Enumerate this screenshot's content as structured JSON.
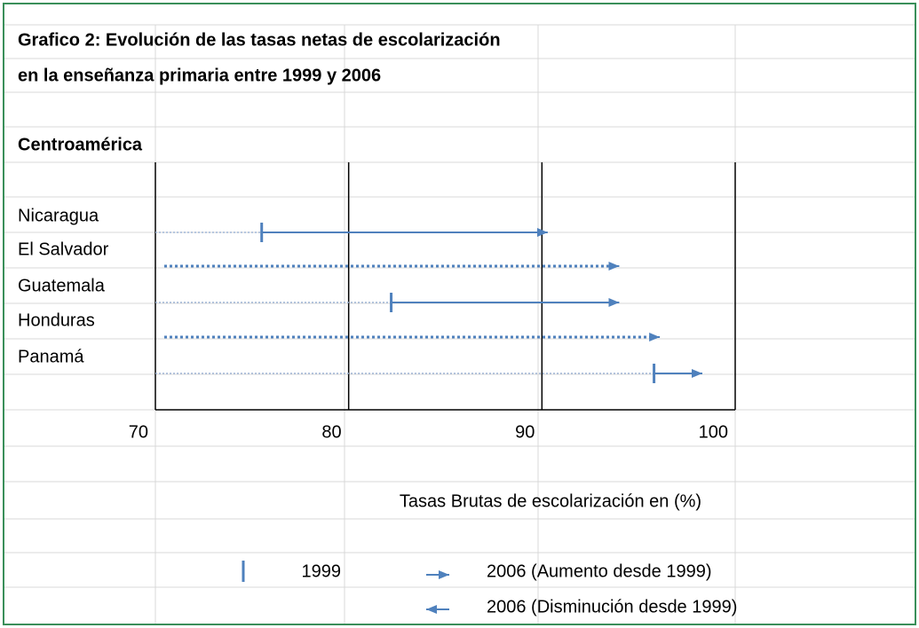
{
  "chart_data": {
    "type": "arrow-range",
    "title": "Grafico 2: Evolución de las tasas netas de escolarización",
    "subtitle": "en la enseñanza primaria entre 1999 y 2006",
    "region": "Centroamérica",
    "x_label": "Tasas Brutas de escolarización en (%)",
    "categories": [
      "Nicaragua",
      "El Salvador",
      "Guatemala",
      "Honduras",
      "Panamá"
    ],
    "series": [
      {
        "name": "1999",
        "color": "#4f81bd",
        "values": [
          75.5,
          null,
          82.2,
          null,
          95.8
        ]
      },
      {
        "name": "2006 (Aumento desde 1999)",
        "color": "#4f81bd",
        "values": [
          90.3,
          94,
          94,
          96.1,
          98.3
        ]
      }
    ],
    "decrease_label": "2006 (Disminución desde 1999)",
    "xlim": [
      70,
      100
    ],
    "xticks": [
      70,
      80,
      90,
      100
    ],
    "grid": true
  }
}
